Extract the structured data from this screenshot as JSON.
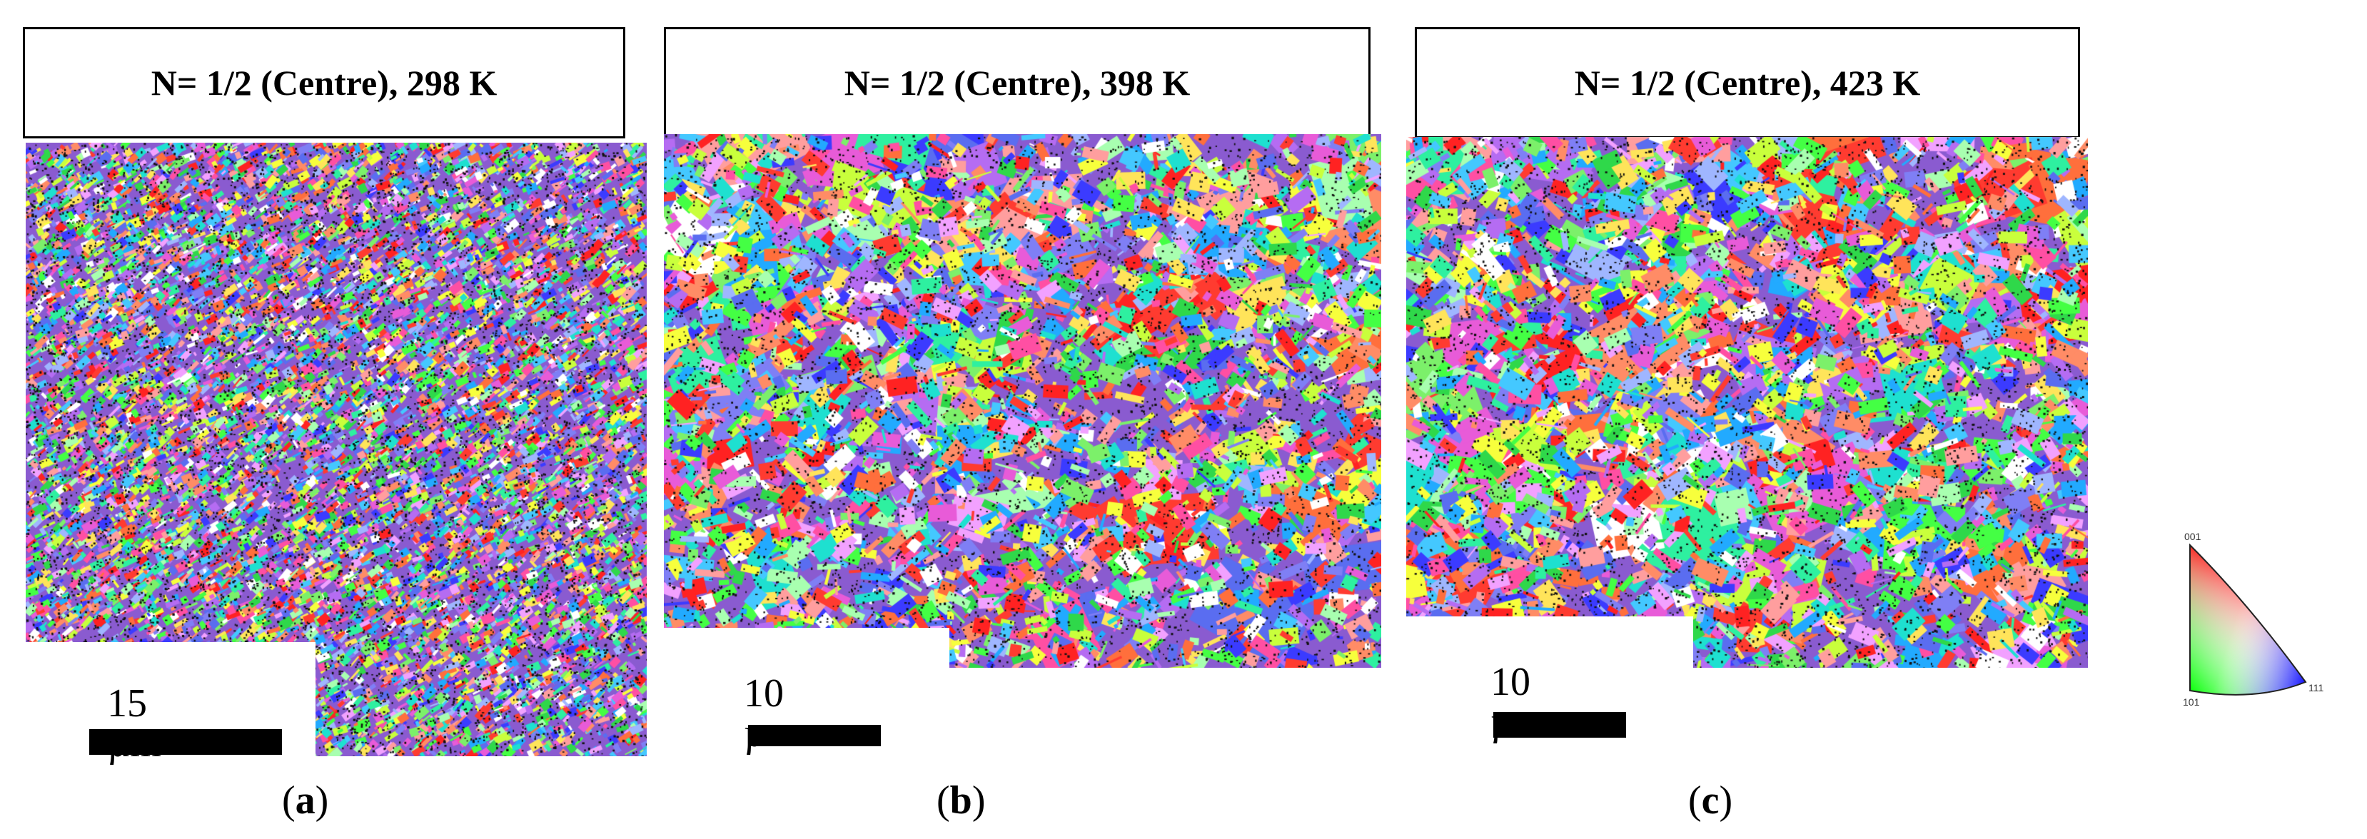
{
  "panels": [
    {
      "title": "N= 1/2 (Centre), 298 K",
      "scale": "15 µm",
      "caption_letter": "a",
      "grain": "fine"
    },
    {
      "title": "N= 1/2 (Centre), 398 K",
      "scale": "10 µm",
      "caption_letter": "b",
      "grain": "medium"
    },
    {
      "title": "N= 1/2 (Centre), 423 K",
      "scale": "10 µm",
      "caption_letter": "c",
      "grain": "coarse"
    }
  ],
  "legend": {
    "labels": {
      "top": "001",
      "bottom_left": "101",
      "right": "111"
    },
    "colors": {
      "top": "#ff0000",
      "bottom_left": "#00ff00",
      "right": "#0000ff"
    }
  },
  "punctuation": {
    "open": "(",
    "close": ")"
  }
}
